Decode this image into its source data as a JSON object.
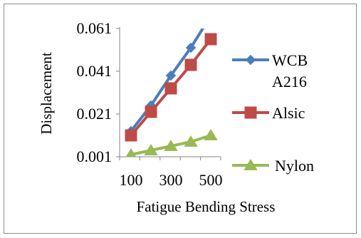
{
  "chart_data": {
    "type": "line",
    "x": [
      100,
      200,
      300,
      400,
      500
    ],
    "x_tick_labels": [
      "100",
      "300",
      "500"
    ],
    "y_tick_labels": [
      "0.001",
      "0.021",
      "0.041",
      "0.061"
    ],
    "ylim": [
      0.001,
      0.061
    ],
    "xlabel": "Fatigue Bending Stress",
    "ylabel": "Displacement",
    "grid": false,
    "legend_position": "right",
    "series": [
      {
        "name": "WCB A216",
        "legend_lines": [
          "WCB",
          "A216"
        ],
        "color": "#4a7ebb",
        "marker": "diamond",
        "values": [
          0.013,
          0.025,
          0.039,
          0.052,
          0.067
        ]
      },
      {
        "name": "Alsic",
        "legend_lines": [
          "Alsic"
        ],
        "color": "#be4b48",
        "marker": "square",
        "values": [
          0.011,
          0.022,
          0.033,
          0.044,
          0.056
        ]
      },
      {
        "name": "Nylon",
        "legend_lines": [
          "Nylon"
        ],
        "color": "#98b954",
        "marker": "triangle",
        "values": [
          0.002,
          0.004,
          0.006,
          0.008,
          0.011
        ]
      }
    ]
  }
}
